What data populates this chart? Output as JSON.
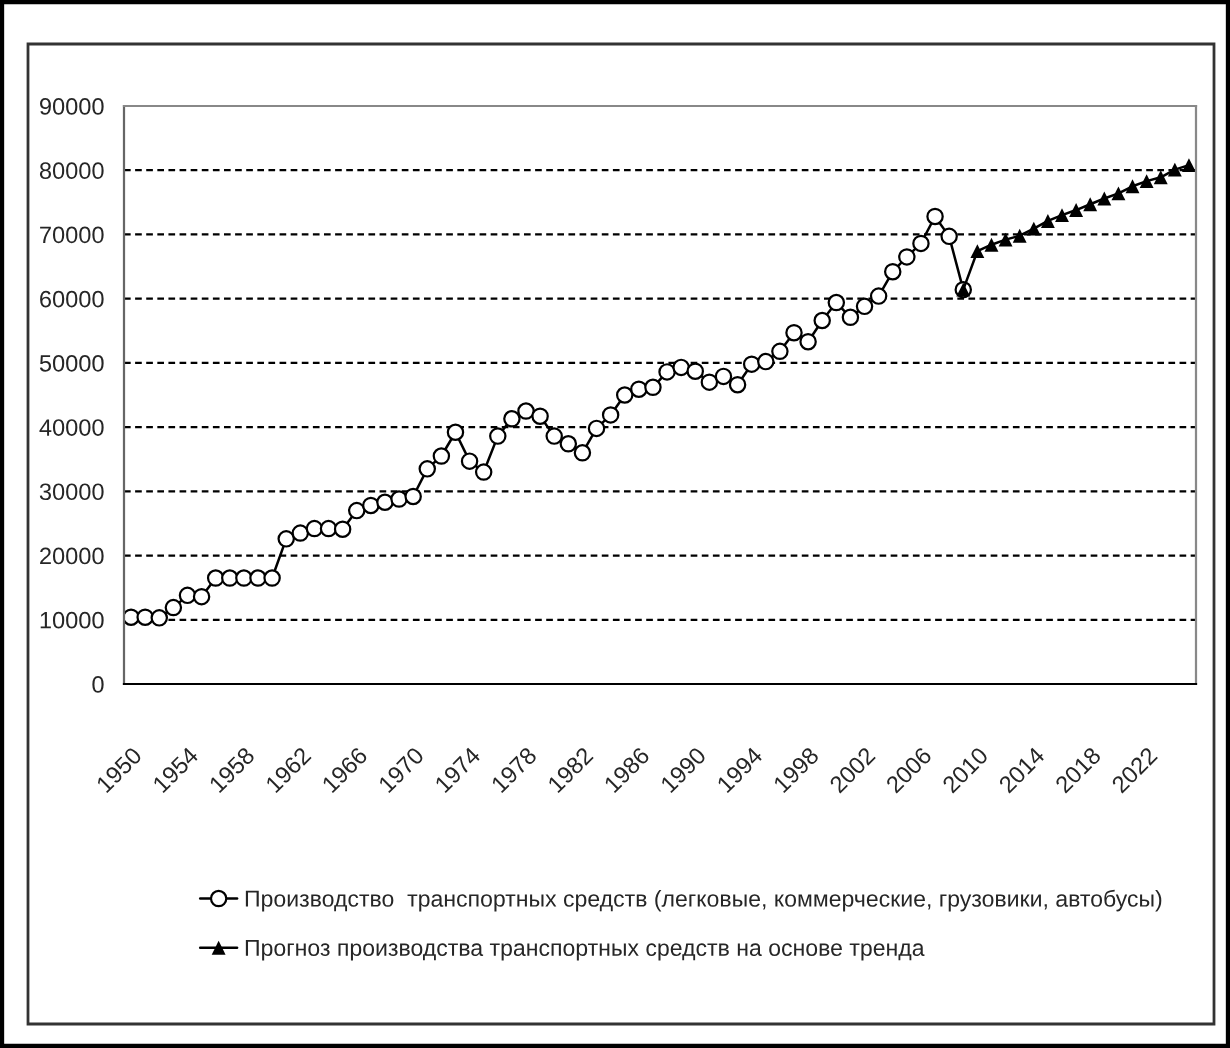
{
  "chart_data": {
    "type": "line",
    "categories": [
      "1950",
      null,
      null,
      null,
      "1954",
      null,
      null,
      null,
      "1958",
      null,
      null,
      null,
      "1962",
      null,
      null,
      null,
      "1966",
      null,
      null,
      null,
      "1970",
      null,
      null,
      null,
      "1974",
      null,
      null,
      null,
      "1978",
      null,
      null,
      null,
      "1982",
      null,
      null,
      null,
      "1986",
      null,
      null,
      null,
      "1990",
      null,
      null,
      null,
      "1994",
      null,
      null,
      null,
      "1998",
      null,
      null,
      null,
      "2002",
      null,
      null,
      null,
      "2006",
      null,
      null,
      null,
      "2010",
      null,
      null,
      null,
      "2014",
      null,
      null,
      null,
      "2018",
      null,
      null,
      null,
      "2022",
      null,
      null,
      null
    ],
    "series": [
      {
        "name": "Производство  транспортных средств (легковые, коммерческие, грузовики, автобусы)",
        "color": "#000000",
        "marker": "circle",
        "values": [
          10400,
          10400,
          10300,
          11900,
          13800,
          13600,
          16500,
          16500,
          16500,
          16500,
          16500,
          22600,
          23500,
          24200,
          24200,
          24100,
          27000,
          27800,
          28300,
          28800,
          29200,
          33500,
          35500,
          39200,
          34700,
          33000,
          38600,
          41300,
          42500,
          41700,
          38600,
          37400,
          36000,
          39800,
          41900,
          45000,
          45900,
          46200,
          48600,
          49300,
          48700,
          47000,
          47900,
          46600,
          49800,
          50200,
          51800,
          54700,
          53300,
          56600,
          59400,
          57100,
          58800,
          60400,
          64200,
          66500,
          68600,
          72800,
          69700,
          61400,
          null,
          null,
          null,
          null,
          null,
          null,
          null,
          null,
          null,
          null,
          null,
          null,
          null,
          null,
          null,
          null
        ]
      },
      {
        "name": "Прогноз производства транспортных средств на основе тренда",
        "color": "#000000",
        "marker": "triangle",
        "values": [
          null,
          null,
          null,
          null,
          null,
          null,
          null,
          null,
          null,
          null,
          null,
          null,
          null,
          null,
          null,
          null,
          null,
          null,
          null,
          null,
          null,
          null,
          null,
          null,
          null,
          null,
          null,
          null,
          null,
          null,
          null,
          null,
          null,
          null,
          null,
          null,
          null,
          null,
          null,
          null,
          null,
          null,
          null,
          null,
          null,
          null,
          null,
          null,
          null,
          null,
          null,
          null,
          null,
          null,
          null,
          null,
          null,
          null,
          null,
          61400,
          67400,
          68400,
          69200,
          69800,
          70900,
          72100,
          73000,
          73800,
          74700,
          75600,
          76400,
          77500,
          78300,
          78900,
          80100,
          80800
        ]
      }
    ],
    "ylim": [
      0,
      90000
    ],
    "yticks": [
      0,
      10000,
      20000,
      30000,
      40000,
      50000,
      60000,
      70000,
      80000,
      90000
    ],
    "grid": "y",
    "legend": "bottom",
    "line_style": "solid"
  }
}
